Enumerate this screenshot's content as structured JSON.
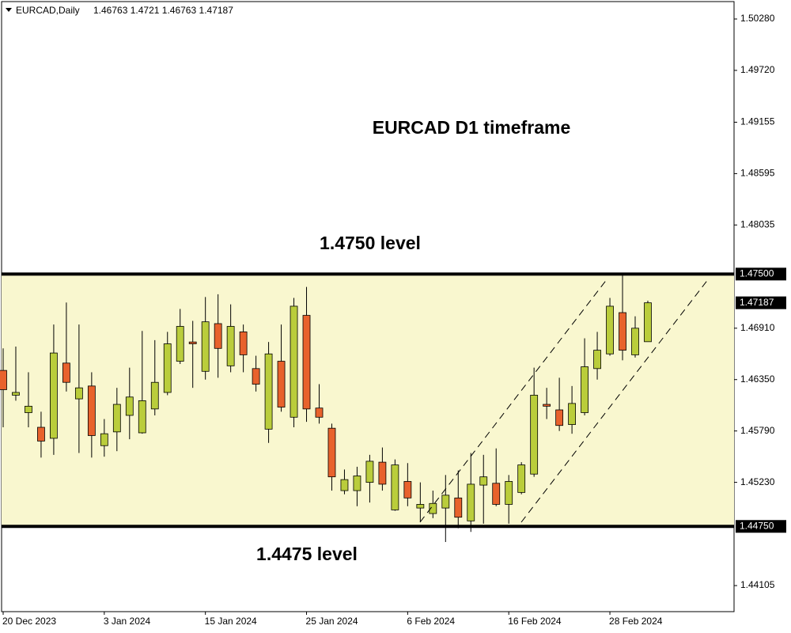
{
  "chart_data": {
    "type": "candlestick",
    "symbol_label": "EURCAD,Daily",
    "title": "EURCAD D1 timeframe",
    "annotations": [
      "1.4750 level",
      "1.4475 level"
    ],
    "categories": [
      "20 Dec 2023",
      null,
      null,
      null,
      null,
      null,
      null,
      null,
      "3 Jan 2024",
      null,
      null,
      null,
      null,
      null,
      null,
      null,
      "15 Jan 2024",
      null,
      null,
      null,
      null,
      null,
      null,
      null,
      "25 Jan 2024",
      null,
      null,
      null,
      null,
      null,
      null,
      null,
      "6 Feb 2024",
      null,
      null,
      null,
      null,
      null,
      null,
      null,
      "16 Feb 2024",
      null,
      null,
      null,
      null,
      null,
      null,
      null,
      "28 Feb 2024",
      null,
      null,
      null
    ],
    "open": [
      1.4645,
      1.4618,
      1.4599,
      1.4583,
      1.4571,
      1.4653,
      1.4614,
      1.4628,
      1.4563,
      1.4578,
      1.4596,
      1.4577,
      1.4603,
      1.4621,
      1.4655,
      1.4676,
      1.4644,
      1.4696,
      1.465,
      1.4687,
      1.4647,
      1.4581,
      1.4655,
      1.4594,
      1.4705,
      1.4604,
      1.4582,
      1.4514,
      1.4514,
      1.4523,
      1.4545,
      1.4493,
      1.4524,
      1.4495,
      1.4489,
      1.4495,
      1.4506,
      1.4481,
      1.452,
      1.4522,
      1.4499,
      1.4512,
      1.4532,
      1.4608,
      1.4602,
      1.4586,
      1.4599,
      1.4647,
      1.4663,
      1.4708,
      1.4662,
      1.46763
    ],
    "high": [
      1.4669,
      1.4671,
      1.4643,
      1.46,
      1.4695,
      1.4719,
      1.4695,
      1.4643,
      1.4592,
      1.4626,
      1.4648,
      1.4688,
      1.4678,
      1.4687,
      1.4712,
      1.4699,
      1.4725,
      1.4728,
      1.4717,
      1.4695,
      1.4661,
      1.4676,
      1.4695,
      1.4724,
      1.4736,
      1.463,
      1.4587,
      1.4537,
      1.454,
      1.4553,
      1.4561,
      1.4548,
      1.4544,
      1.4523,
      1.4514,
      1.4531,
      1.4536,
      1.4555,
      1.4553,
      1.456,
      1.4531,
      1.4545,
      1.4648,
      1.4626,
      1.4637,
      1.4628,
      1.468,
      1.4687,
      1.4724,
      1.4749,
      1.4704,
      1.4721
    ],
    "low": [
      1.4583,
      1.4612,
      1.4583,
      1.455,
      1.4553,
      1.4622,
      1.4555,
      1.455,
      1.4551,
      1.4557,
      1.457,
      1.4576,
      1.4596,
      1.4618,
      1.4652,
      1.4626,
      1.4635,
      1.4637,
      1.4643,
      1.4643,
      1.4622,
      1.4566,
      1.46,
      1.4583,
      1.4589,
      1.4587,
      1.4514,
      1.451,
      1.4497,
      1.4501,
      1.4514,
      1.4492,
      1.4497,
      1.448,
      1.4484,
      1.4458,
      1.4473,
      1.4469,
      1.4478,
      1.4497,
      1.4478,
      1.451,
      1.4529,
      1.4592,
      1.4579,
      1.4576,
      1.4596,
      1.4635,
      1.4661,
      1.4656,
      1.4659,
      1.46763
    ],
    "close": [
      1.4624,
      1.4621,
      1.4606,
      1.4568,
      1.4664,
      1.4632,
      1.4626,
      1.4574,
      1.4576,
      1.4608,
      1.4616,
      1.4612,
      1.4632,
      1.4674,
      1.4693,
      1.4674,
      1.4698,
      1.4669,
      1.4693,
      1.4662,
      1.463,
      1.4663,
      1.4605,
      1.4715,
      1.4603,
      1.4594,
      1.4529,
      1.4526,
      1.453,
      1.4546,
      1.4521,
      1.4542,
      1.4506,
      1.4499,
      1.45,
      1.4509,
      1.4485,
      1.4521,
      1.4529,
      1.4499,
      1.4524,
      1.4542,
      1.4618,
      1.4606,
      1.4585,
      1.4609,
      1.4649,
      1.4667,
      1.4715,
      1.4667,
      1.4691,
      1.47187
    ],
    "up_color": "#bacd3b",
    "down_color": "#e8622c",
    "band_color": "#f9f7cf",
    "ylim": [
      1.43821,
      1.50487
    ],
    "yticks": [
      {
        "value": 1.5028,
        "label": "1.50280"
      },
      {
        "value": 1.4972,
        "label": "1.49720"
      },
      1.49155,
      1.48595,
      1.48035,
      {
        "value": 1.4691,
        "label": "1.46910"
      },
      {
        "value": 1.4635,
        "label": "1.46350"
      },
      {
        "value": 1.4579,
        "label": "1.45790"
      },
      {
        "value": 1.4523,
        "label": "1.45230"
      },
      1.44105
    ],
    "levels": [
      {
        "value": 1.475,
        "label": "1.47500"
      },
      {
        "value": 1.4475,
        "label": "1.44750"
      }
    ]
  }
}
